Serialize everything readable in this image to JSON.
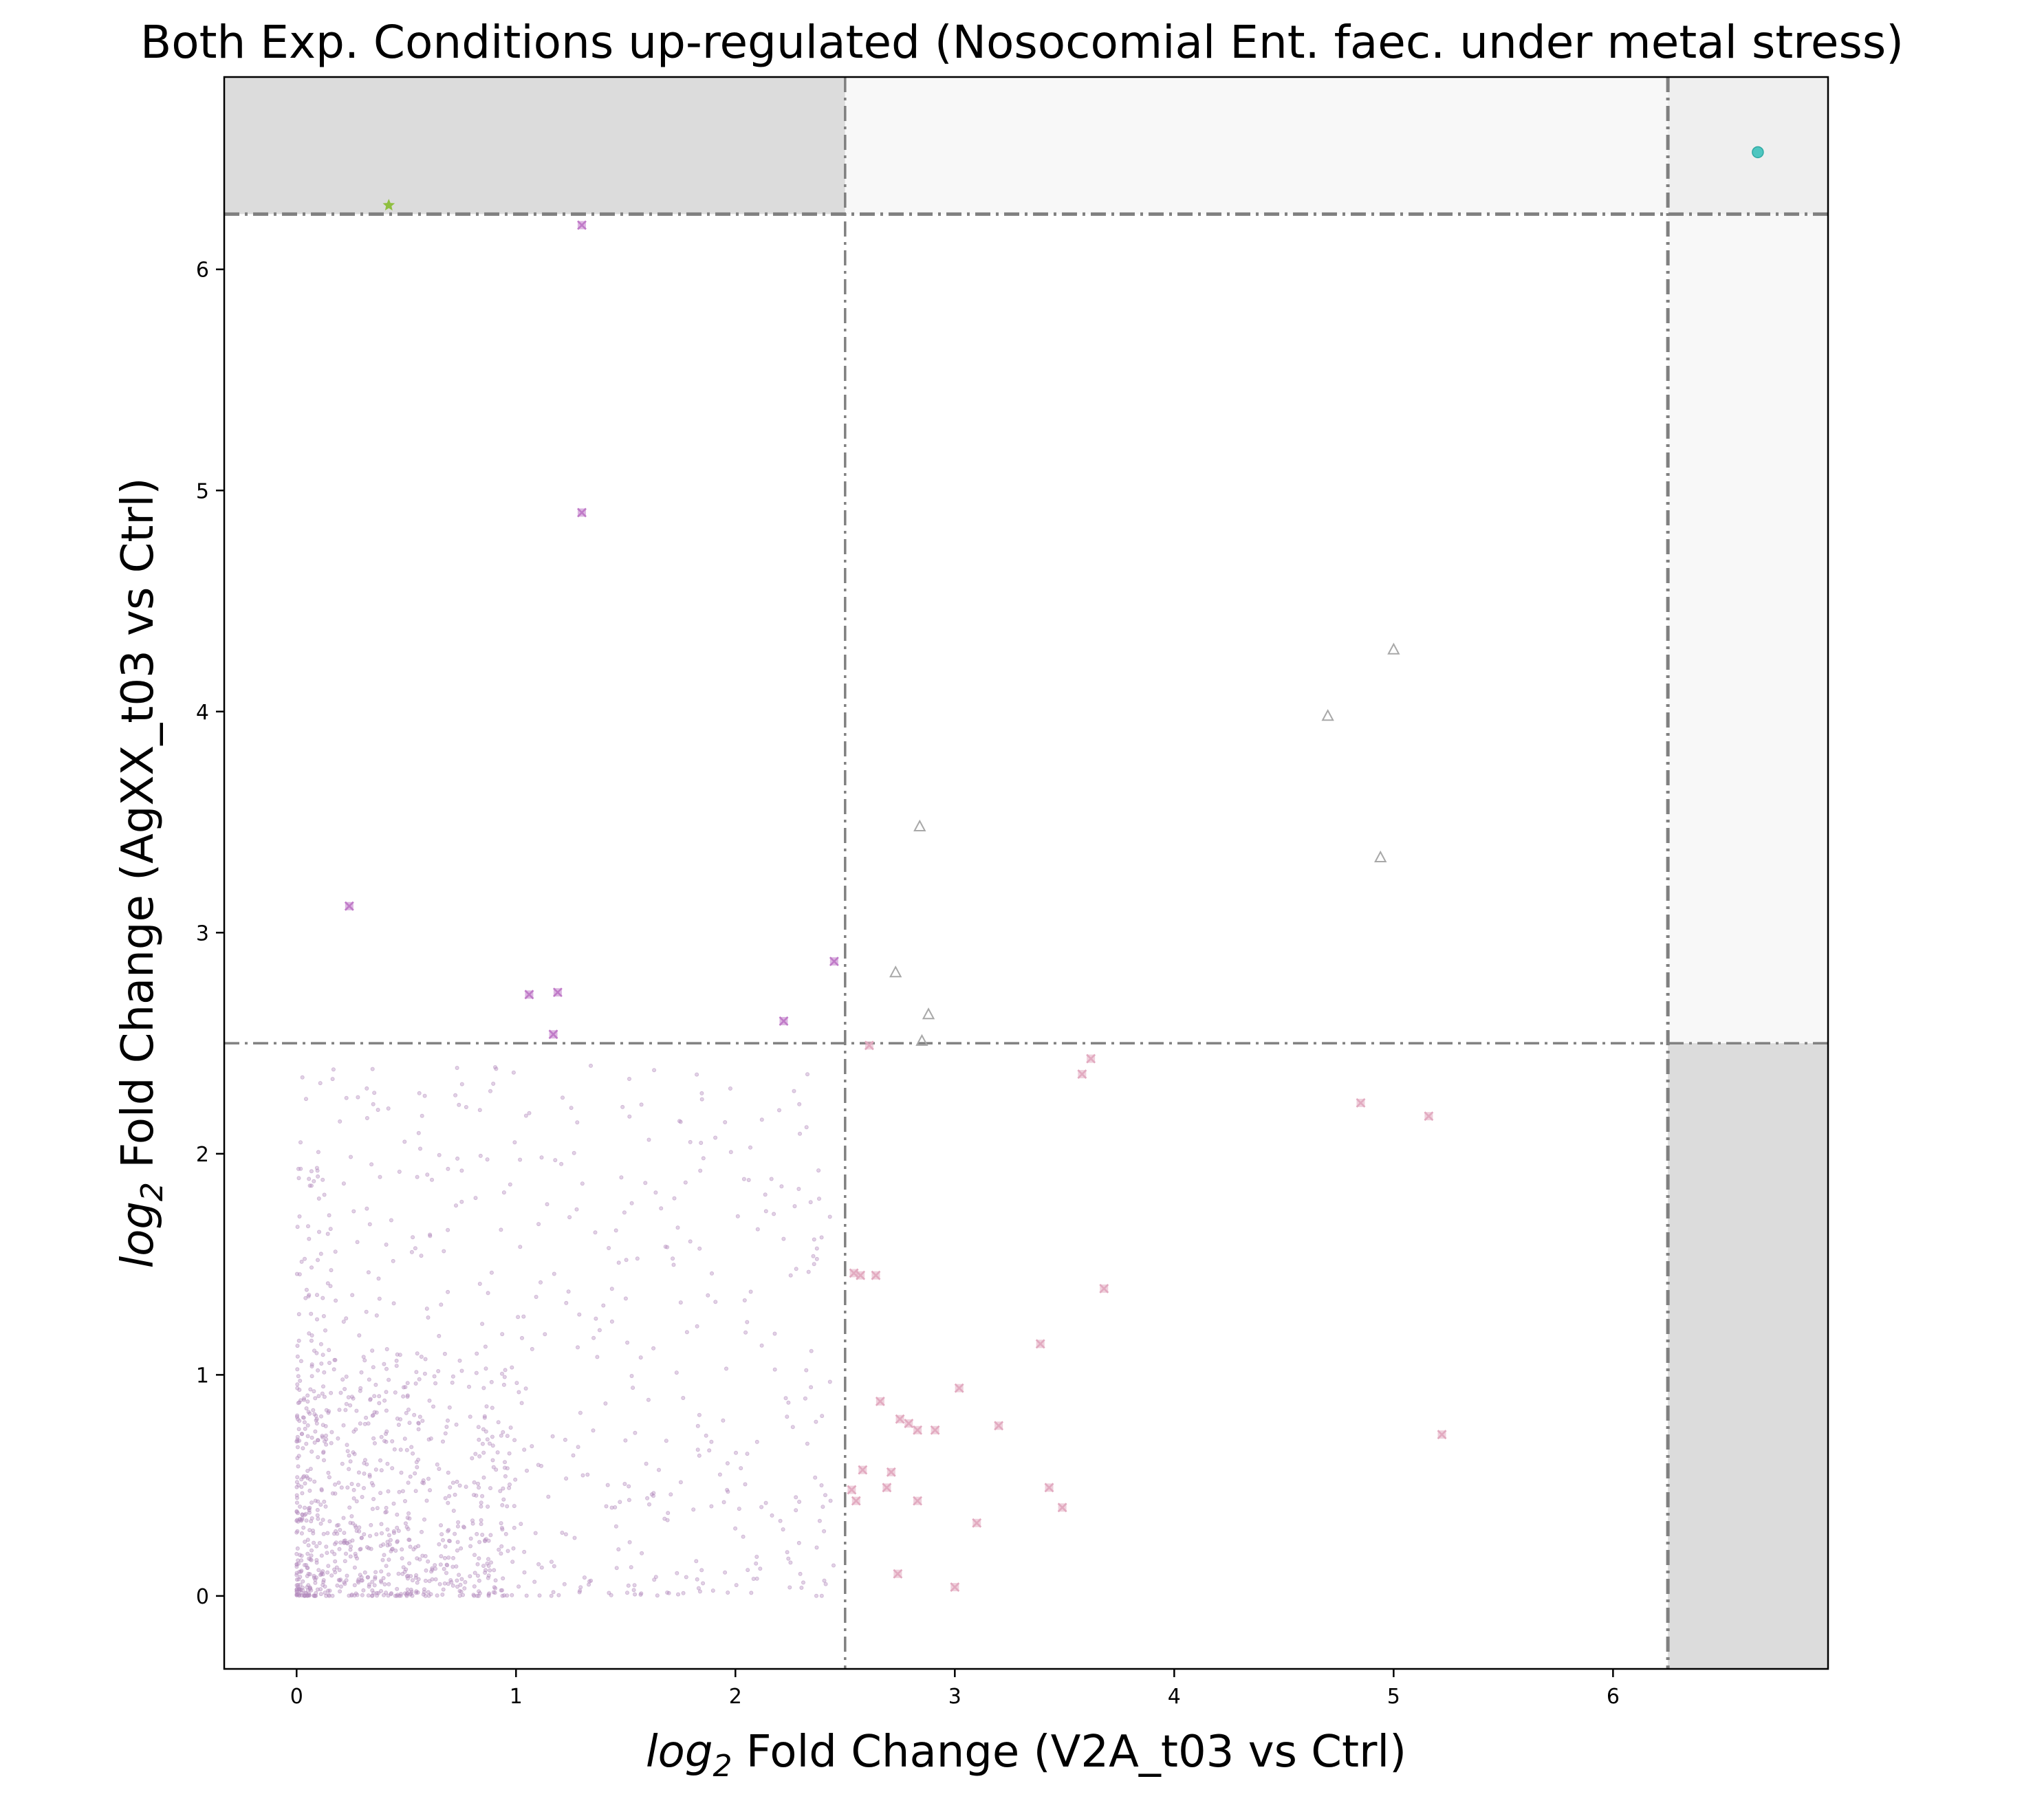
{
  "chart_data": {
    "type": "scatter",
    "title": "Both Exp. Conditions up-regulated (Nosocomial Ent. faec. under metal stress)",
    "xlabel": {
      "math": "log",
      "sub": "2",
      "rest": " Fold Change (V2A_t03 vs Ctrl)"
    },
    "ylabel": {
      "math": "log",
      "sub": "2",
      "rest": " Fold Change (AgXX_t03 vs Ctrl)"
    },
    "xlim": [
      -0.33,
      6.98
    ],
    "ylim": [
      -0.33,
      6.87
    ],
    "xticks": [
      0,
      1,
      2,
      3,
      4,
      5,
      6
    ],
    "yticks": [
      0,
      1,
      2,
      3,
      4,
      5,
      6
    ],
    "grid": false,
    "thresholds": {
      "inner": 2.5,
      "outer": 6.25
    },
    "colors": {
      "background": "#dcdcdc",
      "background_light": "#f8f8f8",
      "background_mid": "#efefef",
      "threshold_line": "#808080",
      "cloud": "#b48cbe",
      "cross_strong": "#c07ac8",
      "cross_light": "#e2aac0",
      "triangle": "#a8a8a8",
      "star": "#8fbf3f",
      "circle": "#4ec6c0"
    },
    "series": [
      {
        "marker": "cross-strong",
        "points": [
          [
            1.3,
            6.2
          ],
          [
            1.3,
            4.9
          ],
          [
            0.24,
            3.12
          ],
          [
            1.06,
            2.72
          ],
          [
            1.19,
            2.73
          ],
          [
            1.17,
            2.54
          ],
          [
            2.45,
            2.87
          ],
          [
            2.22,
            2.6
          ]
        ]
      },
      {
        "marker": "triangle",
        "points": [
          [
            5.0,
            4.28
          ],
          [
            4.7,
            3.98
          ],
          [
            2.84,
            3.48
          ],
          [
            4.94,
            3.34
          ],
          [
            2.73,
            2.82
          ],
          [
            2.88,
            2.63
          ],
          [
            2.85,
            2.51
          ]
        ]
      },
      {
        "marker": "cross-light",
        "points": [
          [
            3.58,
            2.36
          ],
          [
            3.62,
            2.43
          ],
          [
            4.85,
            2.23
          ],
          [
            5.16,
            2.17
          ],
          [
            2.54,
            1.46
          ],
          [
            2.57,
            1.45
          ],
          [
            2.64,
            1.45
          ],
          [
            3.68,
            1.39
          ],
          [
            3.39,
            1.14
          ],
          [
            3.02,
            0.94
          ],
          [
            2.66,
            0.88
          ],
          [
            2.75,
            0.8
          ],
          [
            2.79,
            0.78
          ],
          [
            3.2,
            0.77
          ],
          [
            2.83,
            0.75
          ],
          [
            2.91,
            0.75
          ],
          [
            5.22,
            0.73
          ],
          [
            2.58,
            0.57
          ],
          [
            2.71,
            0.56
          ],
          [
            2.69,
            0.49
          ],
          [
            3.43,
            0.49
          ],
          [
            2.53,
            0.48
          ],
          [
            2.55,
            0.43
          ],
          [
            2.83,
            0.43
          ],
          [
            3.49,
            0.4
          ],
          [
            3.1,
            0.33
          ],
          [
            2.74,
            0.1
          ],
          [
            3.0,
            0.04
          ],
          [
            2.61,
            2.49
          ]
        ]
      },
      {
        "marker": "star",
        "points": [
          [
            0.42,
            6.29
          ]
        ]
      },
      {
        "marker": "circle",
        "points": [
          [
            6.66,
            6.53
          ]
        ]
      }
    ]
  }
}
